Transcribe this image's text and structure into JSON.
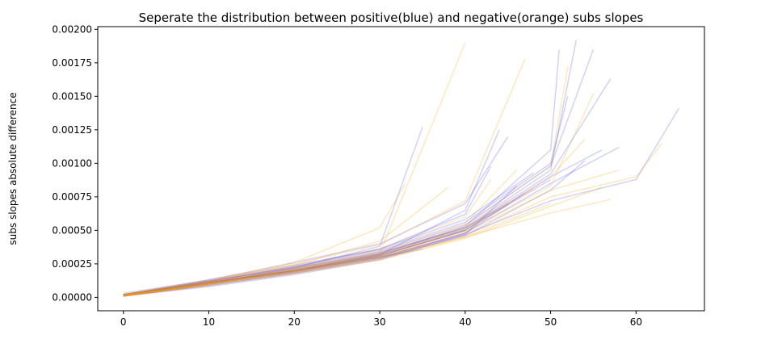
{
  "chart_data": {
    "type": "line",
    "title": "Seperate the distribution between positive(blue) and negative(orange) subs slopes",
    "xlabel": "",
    "ylabel": "subs slopes absolute difference",
    "xlim": [
      -3,
      68
    ],
    "ylim": [
      -0.0001,
      0.00202
    ],
    "x_ticks": [
      0,
      10,
      20,
      30,
      40,
      50,
      60
    ],
    "x_tick_labels": [
      "0",
      "10",
      "20",
      "30",
      "40",
      "50",
      "60"
    ],
    "y_ticks": [
      0,
      0.00025,
      0.0005,
      0.00075,
      0.001,
      0.00125,
      0.0015,
      0.00175,
      0.002
    ],
    "y_tick_labels": [
      "0.00000",
      "0.00025",
      "0.00050",
      "0.00075",
      "0.00100",
      "0.00125",
      "0.00150",
      "0.00175",
      "0.00200"
    ],
    "grid": false,
    "legend": "none",
    "colors": {
      "positive": "#0000ff",
      "negative": "#ffa500"
    },
    "series": [
      {
        "color": "#0000ff",
        "x": [
          0,
          10,
          20,
          30,
          35
        ],
        "y": [
          2e-05,
          0.00011,
          0.0002,
          0.0003,
          0.00036
        ]
      },
      {
        "color": "#0000ff",
        "x": [
          0,
          10,
          20,
          30,
          40
        ],
        "y": [
          1e-05,
          0.0001,
          0.00019,
          0.00031,
          0.0005
        ]
      },
      {
        "color": "#0000ff",
        "x": [
          0,
          10,
          20,
          30,
          40,
          45
        ],
        "y": [
          2e-05,
          0.00012,
          0.00022,
          0.00033,
          0.00052,
          0.0007
        ]
      },
      {
        "color": "#0000ff",
        "x": [
          0,
          10,
          20,
          30,
          40,
          47
        ],
        "y": [
          1e-05,
          9e-05,
          0.00018,
          0.00029,
          0.00048,
          0.00078
        ]
      },
      {
        "color": "#0000ff",
        "x": [
          0,
          10,
          20,
          30,
          40,
          50
        ],
        "y": [
          2e-05,
          0.00011,
          0.0002,
          0.00031,
          0.0005,
          0.00088
        ]
      },
      {
        "color": "#0000ff",
        "x": [
          0,
          10,
          20,
          30,
          40,
          48
        ],
        "y": [
          3e-05,
          0.00013,
          0.00024,
          0.00036,
          0.00058,
          0.00093
        ]
      },
      {
        "color": "#0000ff",
        "x": [
          0,
          10,
          20,
          30,
          35
        ],
        "y": [
          2e-05,
          0.0001,
          0.00022,
          0.00038,
          0.00127
        ]
      },
      {
        "color": "#0000ff",
        "x": [
          0,
          10,
          20,
          30,
          40,
          44
        ],
        "y": [
          1e-05,
          0.0001,
          0.0002,
          0.00032,
          0.00065,
          0.00125
        ]
      },
      {
        "color": "#0000ff",
        "x": [
          0,
          10,
          20,
          30,
          40,
          50,
          53
        ],
        "y": [
          2e-05,
          0.00011,
          0.00021,
          0.00033,
          0.00052,
          0.00095,
          0.00192
        ]
      },
      {
        "color": "#0000ff",
        "x": [
          0,
          10,
          20,
          30,
          40,
          50,
          55
        ],
        "y": [
          2e-05,
          0.00012,
          0.00022,
          0.00034,
          0.00054,
          0.00098,
          0.00185
        ]
      },
      {
        "color": "#0000ff",
        "x": [
          0,
          10,
          20,
          30,
          40,
          50,
          56
        ],
        "y": [
          1e-05,
          0.0001,
          0.0002,
          0.00031,
          0.0005,
          0.0009,
          0.0011
        ]
      },
      {
        "color": "#0000ff",
        "x": [
          0,
          10,
          20,
          30,
          40,
          50,
          57
        ],
        "y": [
          2e-05,
          0.00011,
          0.00021,
          0.00032,
          0.00051,
          0.00092,
          0.00163
        ]
      },
      {
        "color": "#0000ff",
        "x": [
          0,
          10,
          20,
          30,
          40,
          50,
          58
        ],
        "y": [
          1e-05,
          0.0001,
          0.00019,
          0.0003,
          0.00048,
          0.00085,
          0.00112
        ]
      },
      {
        "color": "#0000ff",
        "x": [
          0,
          10,
          20,
          30,
          40,
          50,
          60,
          65
        ],
        "y": [
          2e-05,
          0.0001,
          0.00019,
          0.0003,
          0.00047,
          0.00072,
          0.00088,
          0.00141
        ]
      },
      {
        "color": "#0000ff",
        "x": [
          0,
          10,
          20,
          30,
          40,
          45
        ],
        "y": [
          2e-05,
          0.00013,
          0.00026,
          0.0004,
          0.0007,
          0.0012
        ]
      },
      {
        "color": "#0000ff",
        "x": [
          0,
          10,
          20,
          30,
          40,
          50,
          51
        ],
        "y": [
          2e-05,
          0.00011,
          0.0002,
          0.00032,
          0.00053,
          0.0011,
          0.00185
        ]
      },
      {
        "color": "#0000ff",
        "x": [
          0,
          10,
          20,
          30,
          40,
          50,
          54
        ],
        "y": [
          1e-05,
          9e-05,
          0.00018,
          0.00029,
          0.00046,
          0.0008,
          0.00102
        ]
      },
      {
        "color": "#0000ff",
        "x": [
          0,
          10,
          20,
          30,
          40,
          50,
          52
        ],
        "y": [
          2e-05,
          0.00012,
          0.00023,
          0.00035,
          0.00056,
          0.001,
          0.0015
        ]
      },
      {
        "color": "#0000ff",
        "x": [
          0,
          10,
          20,
          30,
          40,
          46
        ],
        "y": [
          1e-05,
          8e-05,
          0.00017,
          0.00028,
          0.00047,
          0.00083
        ]
      },
      {
        "color": "#0000ff",
        "x": [
          0,
          10,
          20,
          30,
          40,
          43
        ],
        "y": [
          2e-05,
          0.00012,
          0.00023,
          0.00036,
          0.00062,
          0.00098
        ]
      },
      {
        "color": "#ffa500",
        "x": [
          0,
          10,
          20,
          30,
          40
        ],
        "y": [
          1e-05,
          0.0001,
          0.00021,
          0.00033,
          0.0019
        ]
      },
      {
        "color": "#ffa500",
        "x": [
          0,
          10,
          20,
          30,
          33
        ],
        "y": [
          2e-05,
          0.00012,
          0.00026,
          0.00052,
          0.00085
        ]
      },
      {
        "color": "#ffa500",
        "x": [
          0,
          10,
          20,
          30,
          40,
          45
        ],
        "y": [
          1e-05,
          0.0001,
          0.0002,
          0.00031,
          0.00052,
          0.00072
        ]
      },
      {
        "color": "#ffa500",
        "x": [
          0,
          10,
          20,
          30,
          40,
          48
        ],
        "y": [
          2e-05,
          0.00011,
          0.00021,
          0.00032,
          0.00051,
          0.00081
        ]
      },
      {
        "color": "#ffa500",
        "x": [
          0,
          10,
          20,
          30,
          40,
          50
        ],
        "y": [
          1e-05,
          9e-05,
          0.00018,
          0.00028,
          0.00045,
          0.0007
        ]
      },
      {
        "color": "#ffa500",
        "x": [
          0,
          10,
          20,
          30,
          40,
          50,
          55
        ],
        "y": [
          1e-05,
          0.0001,
          0.0002,
          0.00031,
          0.00049,
          0.00083,
          0.00152
        ]
      },
      {
        "color": "#ffa500",
        "x": [
          0,
          10,
          20,
          30,
          40,
          50,
          57
        ],
        "y": [
          1e-05,
          0.0001,
          0.00019,
          0.0003,
          0.00045,
          0.00063,
          0.00073
        ]
      },
      {
        "color": "#ffa500",
        "x": [
          0,
          10,
          20,
          30,
          40,
          50,
          60,
          63
        ],
        "y": [
          2e-05,
          0.0001,
          0.00019,
          0.00029,
          0.00046,
          0.00075,
          0.0009,
          0.00115
        ]
      },
      {
        "color": "#ffa500",
        "x": [
          0,
          10,
          20,
          30,
          40,
          47
        ],
        "y": [
          2e-05,
          0.00013,
          0.00025,
          0.00039,
          0.00072,
          0.00178
        ]
      },
      {
        "color": "#ffa500",
        "x": [
          0,
          10,
          20,
          30,
          40,
          50,
          52
        ],
        "y": [
          1e-05,
          0.00011,
          0.00021,
          0.00033,
          0.00053,
          0.00098,
          0.00172
        ]
      },
      {
        "color": "#ffa500",
        "x": [
          0,
          10,
          20,
          30,
          40,
          43
        ],
        "y": [
          2e-05,
          0.00012,
          0.00023,
          0.00036,
          0.0006,
          0.00088
        ]
      },
      {
        "color": "#ffa500",
        "x": [
          0,
          10,
          20,
          30,
          40,
          50,
          54
        ],
        "y": [
          1e-05,
          0.0001,
          0.0002,
          0.00031,
          0.0005,
          0.0009,
          0.00118
        ]
      },
      {
        "color": "#ffa500",
        "x": [
          0,
          10,
          20,
          30,
          40,
          50,
          56
        ],
        "y": [
          1e-05,
          9e-05,
          0.00018,
          0.00028,
          0.00044,
          0.00068,
          0.00082
        ]
      },
      {
        "color": "#ffa500",
        "x": [
          0,
          10,
          20,
          30,
          38
        ],
        "y": [
          2e-05,
          0.00012,
          0.00024,
          0.00042,
          0.00082
        ]
      },
      {
        "color": "#ffa500",
        "x": [
          0,
          10,
          20,
          30,
          40,
          46
        ],
        "y": [
          2e-05,
          0.00011,
          0.00022,
          0.00034,
          0.00055,
          0.00095
        ]
      },
      {
        "color": "#ffa500",
        "x": [
          0,
          10,
          20,
          30,
          40,
          50,
          58
        ],
        "y": [
          1e-05,
          0.0001,
          0.00019,
          0.0003,
          0.00048,
          0.0008,
          0.00095
        ]
      }
    ]
  }
}
